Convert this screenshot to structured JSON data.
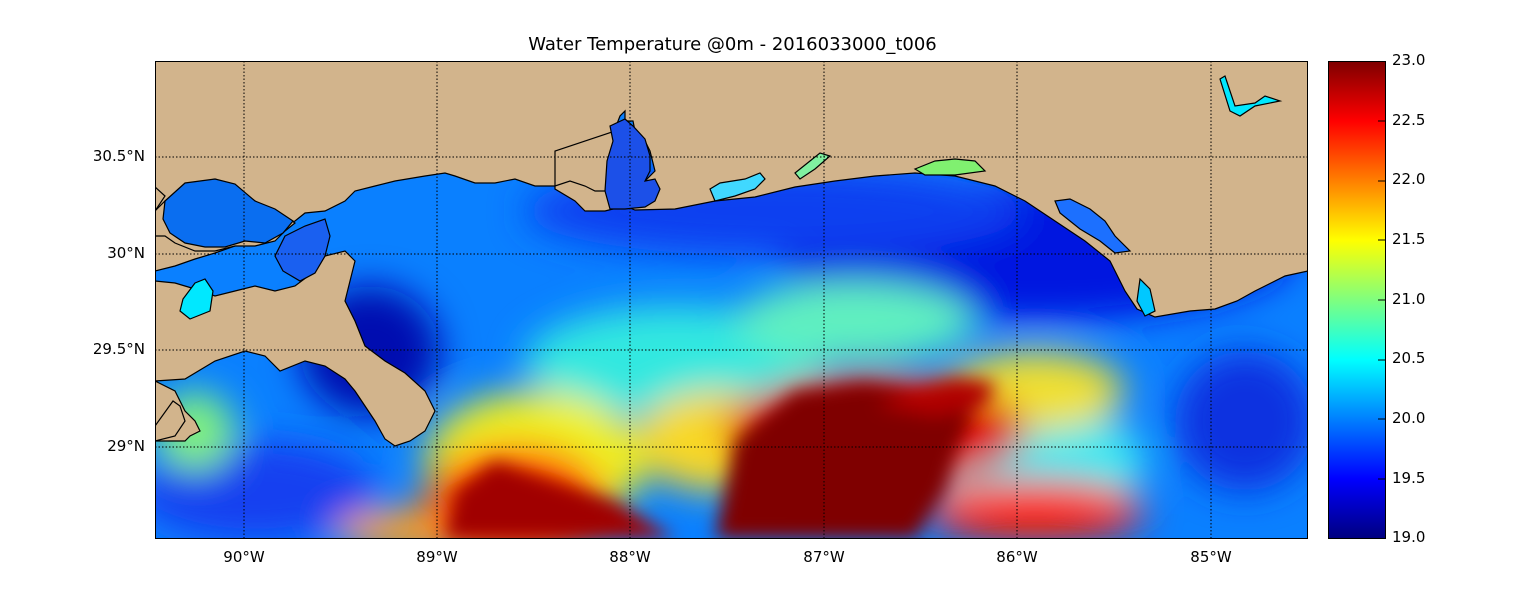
{
  "title": "Water Temperature @0m - 2016033000_t006",
  "lat_labels": [
    "30.5°N",
    "30°N",
    "29.5°N",
    "29°N"
  ],
  "lon_labels": [
    "90°W",
    "89°W",
    "88°W",
    "87°W",
    "86°W",
    "85°W"
  ],
  "colorbar": {
    "ticks": [
      "23.0",
      "22.5",
      "22.0",
      "21.5",
      "21.0",
      "20.5",
      "20.0",
      "19.5",
      "19.0"
    ],
    "min": 19.0,
    "max": 23.0
  },
  "colors": {
    "land": "#d2b48c",
    "colormap": [
      "#00007f",
      "#0000ff",
      "#007fff",
      "#00ffff",
      "#7fff7f",
      "#ffff00",
      "#ff7f00",
      "#ff0000",
      "#7f0000"
    ]
  }
}
